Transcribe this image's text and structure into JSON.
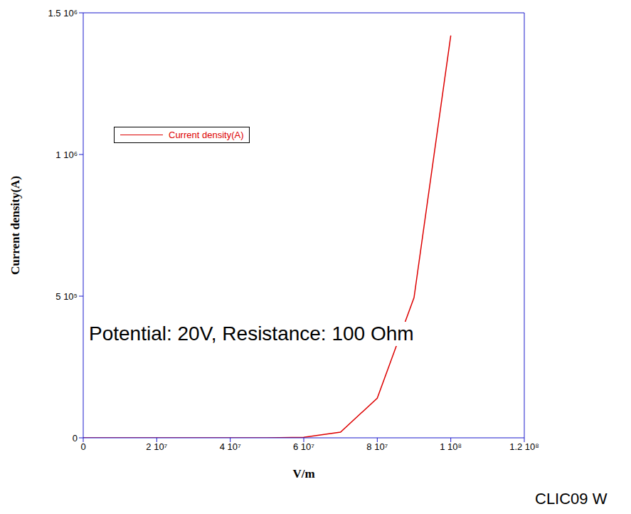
{
  "chart_data": {
    "type": "line",
    "x_label": "V/m",
    "y_label": "Current density(A)",
    "annotations": [
      "Potential: 20V, Resistance: 100 Ohm",
      "CLIC09 W"
    ],
    "x": [
      0,
      10000000,
      20000000,
      30000000,
      40000000,
      50000000,
      60000000,
      70000000,
      80000000,
      90000000,
      100000000
    ],
    "series": [
      {
        "name": "Current density(A)",
        "color": "#dd0000",
        "values": [
          0,
          0,
          0,
          0,
          0,
          0,
          2000,
          20000,
          140000,
          495000,
          1420000
        ]
      }
    ],
    "xlim": [
      0,
      120000000
    ],
    "xticks": [
      0,
      {
        "value": 20000000,
        "label": "2 10⁷"
      },
      {
        "value": 40000000,
        "label": "4 10⁷"
      },
      {
        "value": 60000000,
        "label": "6 10⁷"
      },
      {
        "value": 80000000,
        "label": "8 10⁷"
      },
      {
        "value": 100000000,
        "label": "1 10⁸"
      },
      {
        "value": 120000000,
        "label": "1.2 10⁸"
      }
    ],
    "ylim": [
      0,
      1500000
    ],
    "yticks": [
      0,
      {
        "value": 500000,
        "label": "5 10⁵"
      },
      {
        "value": 1000000,
        "label": "1 10⁶"
      },
      {
        "value": 1500000,
        "label": "1.5 10⁶"
      }
    ],
    "legend": "upper left",
    "grid": false
  }
}
